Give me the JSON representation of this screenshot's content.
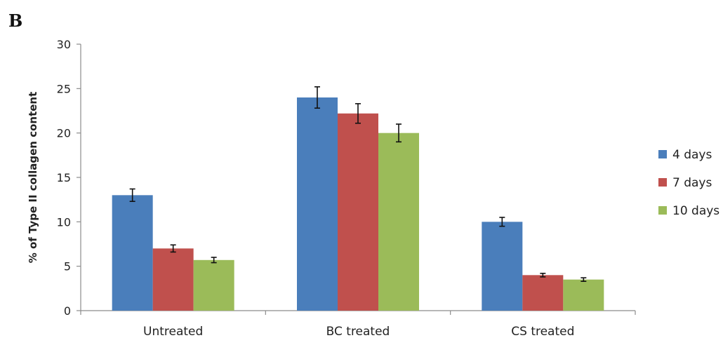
{
  "panel_label": "B",
  "colors": {
    "series": [
      "#4a7ebb",
      "#c0504d",
      "#9bbb59"
    ],
    "axis": "#8c8c8c",
    "error_bar": "#111111"
  },
  "chart_data": {
    "type": "bar",
    "title": "",
    "xlabel": "",
    "ylabel": "% of Type II collagen content",
    "ylim": [
      0,
      30
    ],
    "yticks": [
      0,
      5,
      10,
      15,
      20,
      25,
      30
    ],
    "grid": false,
    "legend_position": "right",
    "categories": [
      "Untreated",
      "BC treated",
      "CS treated"
    ],
    "series": [
      {
        "name": "4 days",
        "values": [
          13.0,
          24.0,
          10.0
        ],
        "errors": [
          0.7,
          1.2,
          0.5
        ]
      },
      {
        "name": "7 days",
        "values": [
          7.0,
          22.2,
          4.0
        ],
        "errors": [
          0.4,
          1.1,
          0.2
        ]
      },
      {
        "name": "10 days",
        "values": [
          5.7,
          20.0,
          3.5
        ],
        "errors": [
          0.3,
          1.0,
          0.2
        ]
      }
    ]
  }
}
